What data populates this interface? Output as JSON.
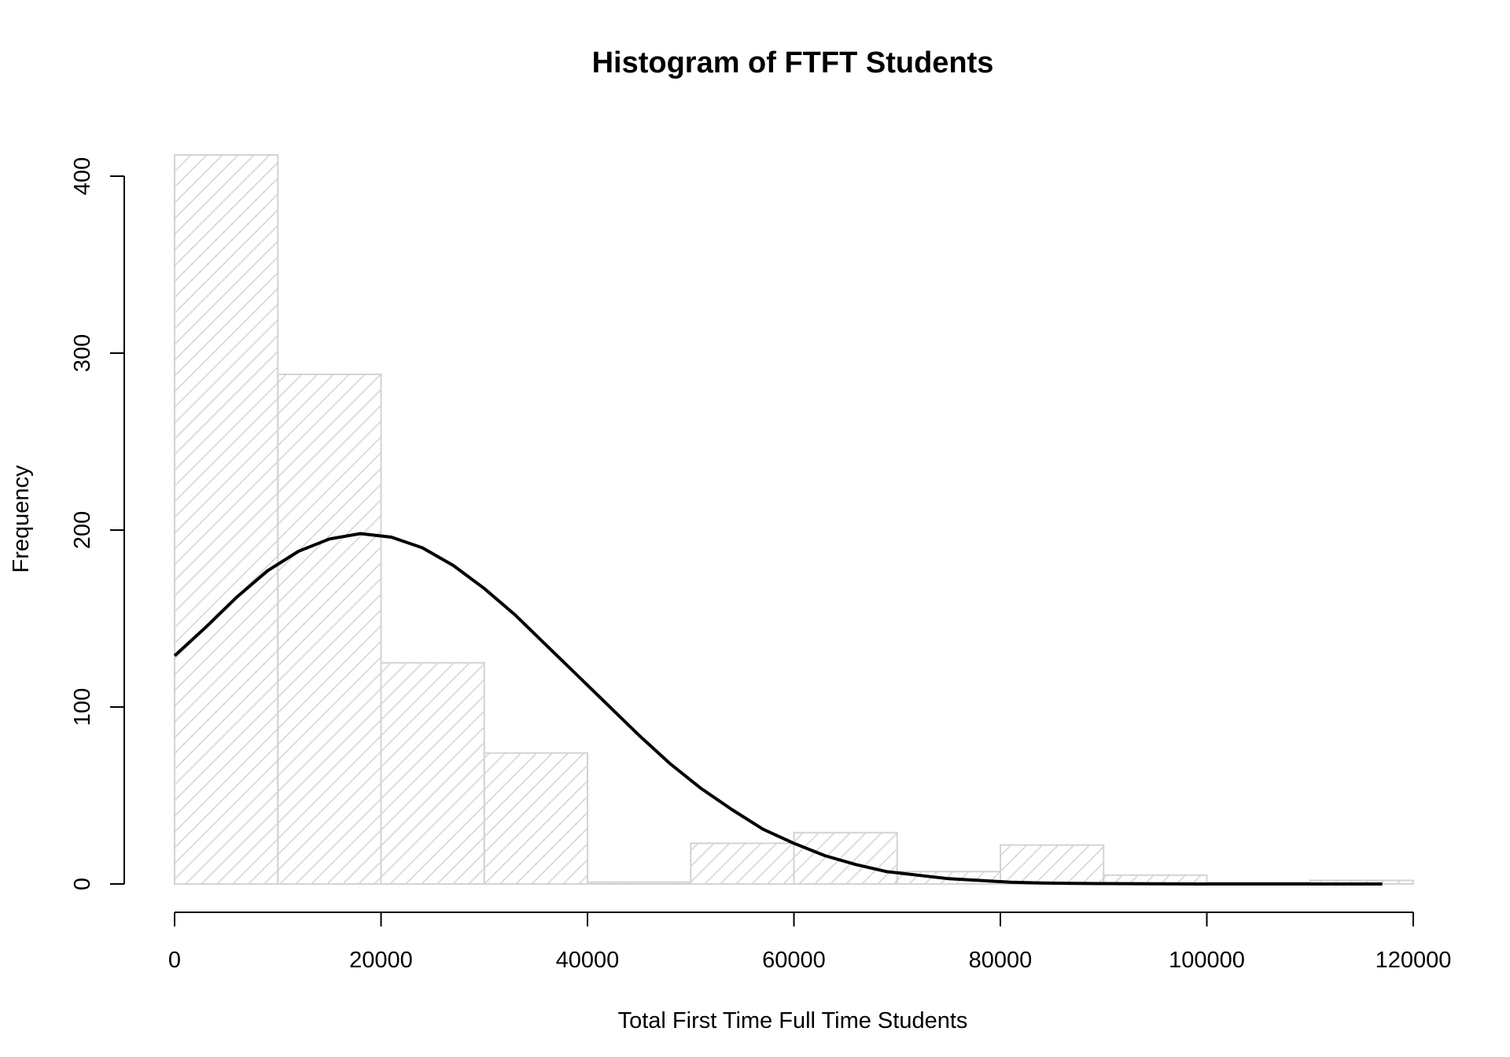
{
  "chart_data": {
    "type": "bar",
    "title": "Histogram of FTFT Students",
    "xlabel": "Total First Time Full Time Students",
    "ylabel": "Frequency",
    "bins": [
      {
        "from": 0,
        "to": 10000,
        "count": 412
      },
      {
        "from": 10000,
        "to": 20000,
        "count": 288
      },
      {
        "from": 20000,
        "to": 30000,
        "count": 125
      },
      {
        "from": 30000,
        "to": 40000,
        "count": 74
      },
      {
        "from": 40000,
        "to": 50000,
        "count": 1
      },
      {
        "from": 50000,
        "to": 60000,
        "count": 23
      },
      {
        "from": 60000,
        "to": 70000,
        "count": 29
      },
      {
        "from": 70000,
        "to": 80000,
        "count": 7
      },
      {
        "from": 80000,
        "to": 90000,
        "count": 22
      },
      {
        "from": 90000,
        "to": 100000,
        "count": 5
      },
      {
        "from": 100000,
        "to": 110000,
        "count": 1
      },
      {
        "from": 110000,
        "to": 120000,
        "count": 2
      }
    ],
    "density_curve": {
      "x": [
        0,
        3000,
        6000,
        9000,
        12000,
        15000,
        18000,
        21000,
        24000,
        27000,
        30000,
        33000,
        36000,
        39000,
        42000,
        45000,
        48000,
        51000,
        54000,
        57000,
        60000,
        63000,
        66000,
        69000,
        72000,
        75000,
        78000,
        81000,
        84000,
        87000,
        90000,
        95000,
        100000,
        105000,
        110000,
        117000
      ],
      "y": [
        129,
        145,
        162,
        177,
        188,
        195,
        198,
        196,
        190,
        180,
        167,
        152,
        135,
        118,
        101,
        84,
        68,
        54,
        42,
        31,
        23,
        16,
        11,
        7,
        5,
        3,
        2,
        1,
        0.6,
        0.3,
        0.2,
        0.1,
        0,
        0,
        0,
        0
      ]
    },
    "xlim": [
      0,
      120000
    ],
    "ylim": [
      0,
      400
    ],
    "xticks": [
      0,
      20000,
      40000,
      60000,
      80000,
      100000,
      120000
    ],
    "yticks": [
      0,
      100,
      200,
      300,
      400
    ],
    "bar_fill": "hatched",
    "bar_color": "#d3d3d3",
    "curve_color": "#000000",
    "grid": false
  }
}
